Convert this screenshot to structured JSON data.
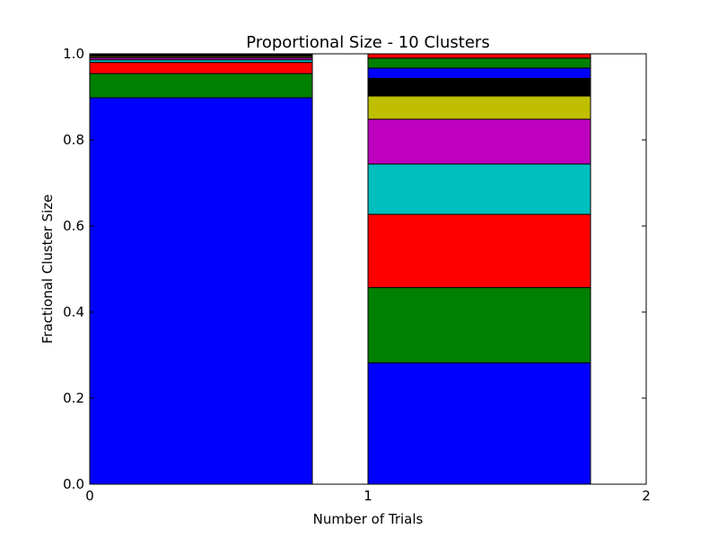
{
  "chart_data": {
    "type": "bar",
    "stacked": true,
    "title": "Proportional Size - 10 Clusters",
    "xlabel": "Number of Trials",
    "ylabel": "Fractional Cluster Size",
    "xlim": [
      0,
      2
    ],
    "ylim": [
      0.0,
      1.0
    ],
    "xticks": [
      "0",
      "1",
      "2"
    ],
    "yticks": [
      "0.0",
      "0.2",
      "0.4",
      "0.6",
      "0.8",
      "1.0"
    ],
    "bar_width": 0.8,
    "bars": [
      {
        "x": 0,
        "segments": [
          {
            "value": 0.898,
            "color": "#0000ff"
          },
          {
            "value": 0.056,
            "color": "#008000"
          },
          {
            "value": 0.026,
            "color": "#ff0000"
          },
          {
            "value": 0.006,
            "color": "#00bfbf"
          },
          {
            "value": 0.005,
            "color": "#bf00bf"
          },
          {
            "value": 0.003,
            "color": "#bfbf00"
          },
          {
            "value": 0.002,
            "color": "#000000"
          },
          {
            "value": 0.002,
            "color": "#0000ff"
          },
          {
            "value": 0.001,
            "color": "#008000"
          },
          {
            "value": 0.001,
            "color": "#ff0000"
          }
        ]
      },
      {
        "x": 1,
        "segments": [
          {
            "value": 0.282,
            "color": "#0000ff"
          },
          {
            "value": 0.175,
            "color": "#008000"
          },
          {
            "value": 0.17,
            "color": "#ff0000"
          },
          {
            "value": 0.117,
            "color": "#00bfbf"
          },
          {
            "value": 0.104,
            "color": "#bf00bf"
          },
          {
            "value": 0.054,
            "color": "#bfbf00"
          },
          {
            "value": 0.041,
            "color": "#000000"
          },
          {
            "value": 0.024,
            "color": "#0000ff"
          },
          {
            "value": 0.023,
            "color": "#008000"
          },
          {
            "value": 0.01,
            "color": "#ff0000"
          }
        ]
      }
    ],
    "grid": false
  }
}
